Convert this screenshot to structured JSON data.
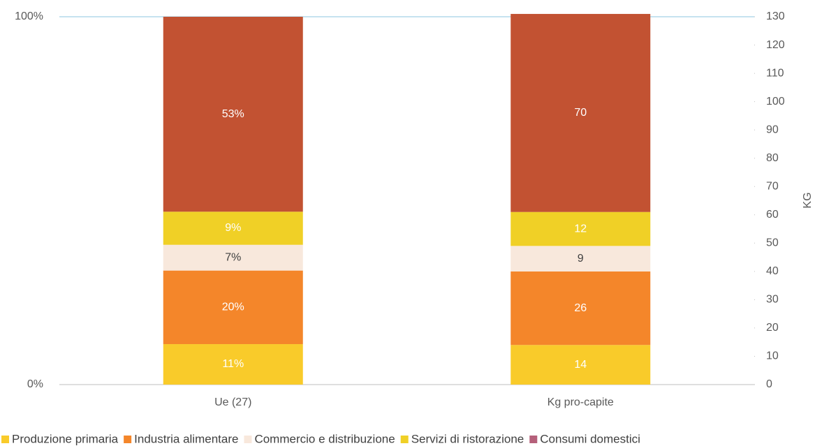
{
  "chart_data": {
    "type": "stacked_bar",
    "categories": [
      "Ue (27)",
      "Kg pro-capite"
    ],
    "category_axes": [
      "y",
      "y2"
    ],
    "series": [
      {
        "name": "Produzione primaria",
        "color": "#f9cb2a",
        "values": [
          11,
          14
        ],
        "value_labels": [
          "11%",
          "14"
        ]
      },
      {
        "name": "Industria alimentare",
        "color": "#f4862a",
        "values": [
          20,
          26
        ],
        "value_labels": [
          "20%",
          "26"
        ]
      },
      {
        "name": "Commercio e distribuzione",
        "color": "#f8e8dc",
        "values": [
          7,
          9
        ],
        "value_labels": [
          "7%",
          "9"
        ]
      },
      {
        "name": "Servizi di ristorazione",
        "color": "#f0d026",
        "values": [
          9,
          12
        ],
        "value_labels": [
          "9%",
          "12"
        ]
      },
      {
        "name": "Consumi domestici",
        "color": "#c25232",
        "legend_color": "#b5607a",
        "values": [
          53,
          70
        ],
        "value_labels": [
          "53%",
          "70"
        ]
      }
    ],
    "ylim": [
      0,
      100
    ],
    "yticks": [
      {
        "value": 0,
        "label": "0%"
      },
      {
        "value": 100,
        "label": "100%"
      }
    ],
    "y2lim": [
      0,
      130
    ],
    "y2ticks": [
      0,
      10,
      20,
      30,
      40,
      50,
      60,
      70,
      80,
      90,
      100,
      110,
      120,
      130
    ],
    "y2_label": "KG",
    "legend": "bottom"
  }
}
